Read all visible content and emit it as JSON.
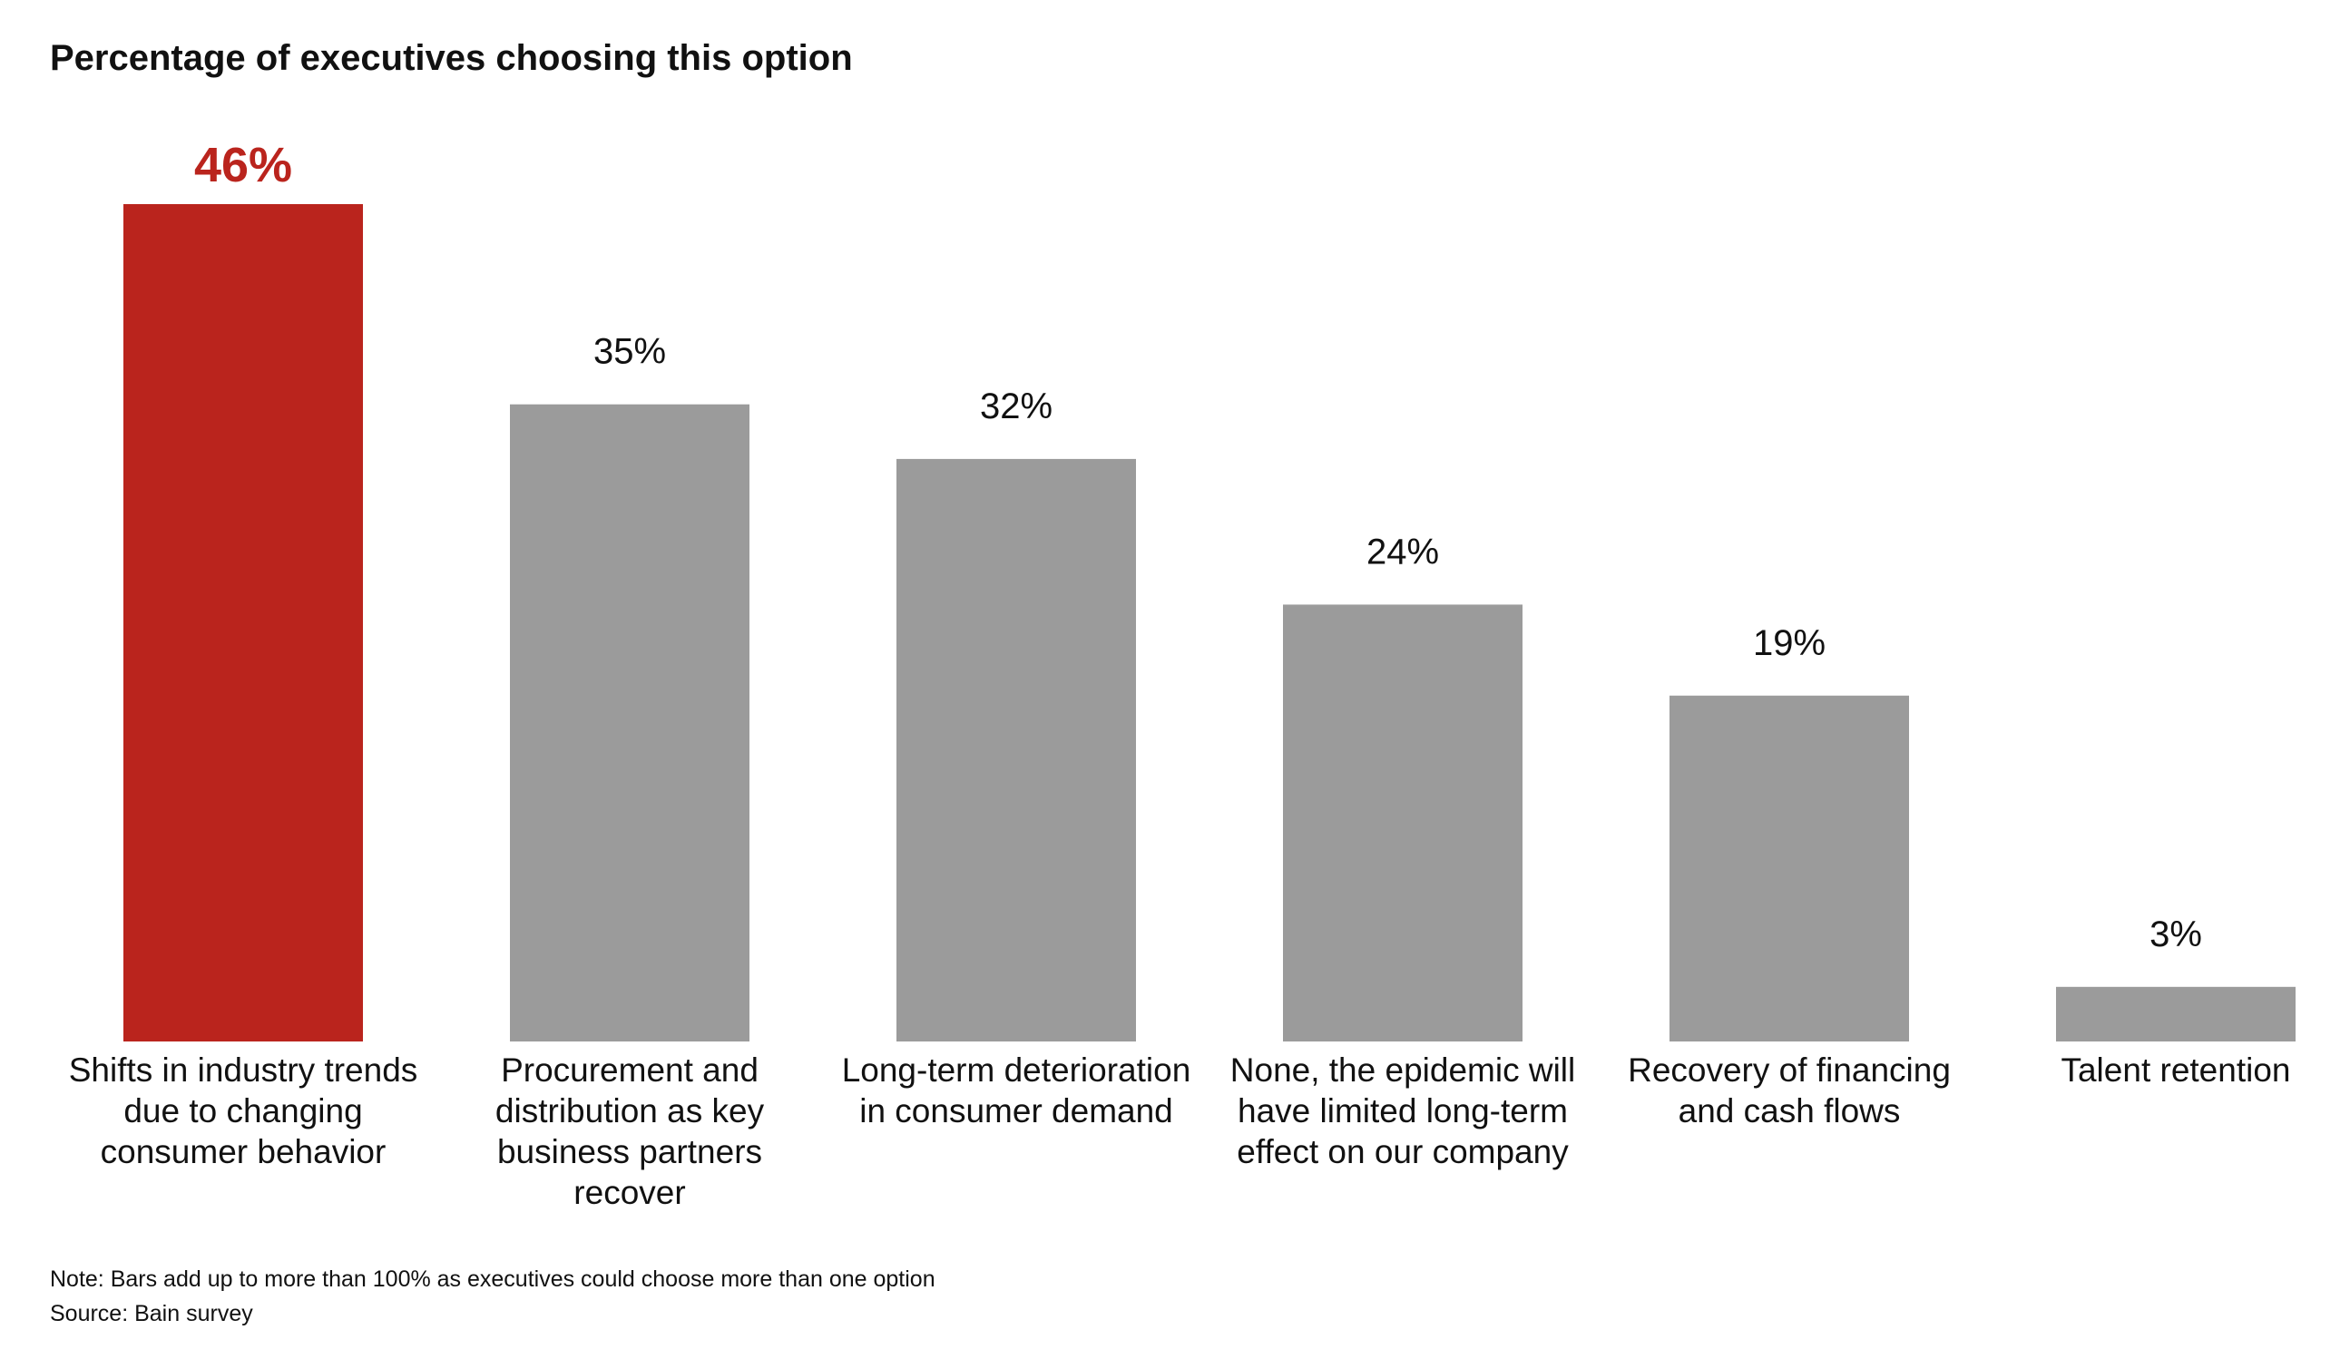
{
  "title": "Percentage of executives choosing this option",
  "note": "Note: Bars add up to more than 100% as executives could choose more than one option",
  "source": "Source: Bain survey",
  "colors": {
    "highlight": "#BA241D",
    "default": "#9B9B9B",
    "highlight_label": "#BA241D",
    "default_label": "#111111"
  },
  "chart_data": {
    "type": "bar",
    "categories": [
      [
        "Shifts in industry trends",
        "due to changing",
        "consumer behavior"
      ],
      [
        "Procurement and",
        "distribution as key",
        "business partners",
        "recover"
      ],
      [
        "Long-term deterioration",
        "in consumer demand"
      ],
      [
        "None, the epidemic will",
        "have limited long-term",
        "effect on our company"
      ],
      [
        "Recovery of financing",
        "and cash flows"
      ],
      [
        "Talent retention"
      ]
    ],
    "values": [
      46,
      35,
      32,
      24,
      19,
      3
    ],
    "value_labels": [
      "46%",
      "35%",
      "32%",
      "24%",
      "19%",
      "3%"
    ],
    "highlight_index": 0,
    "ylim": [
      0,
      46
    ],
    "grid": false,
    "xlabel": "",
    "ylabel": ""
  }
}
